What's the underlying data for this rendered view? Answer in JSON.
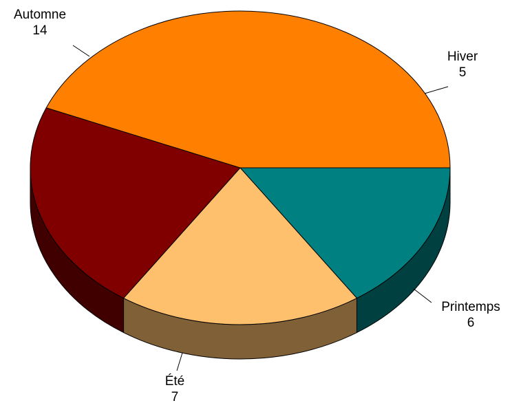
{
  "chart_data": {
    "type": "pie",
    "style": "3d",
    "title": "",
    "slices": [
      {
        "label": "Hiver",
        "value": 5,
        "color": "#008080",
        "side_color": "#004040"
      },
      {
        "label": "Printemps",
        "value": 6,
        "color": "#FFC06E",
        "side_color": "#806037"
      },
      {
        "label": "Été",
        "value": 7,
        "color": "#800000",
        "side_color": "#400000"
      },
      {
        "label": "Automne",
        "value": 14,
        "color": "#FF8000",
        "side_color": "#804000"
      }
    ],
    "legend": "none",
    "data_labels": "outside, category name and value"
  }
}
